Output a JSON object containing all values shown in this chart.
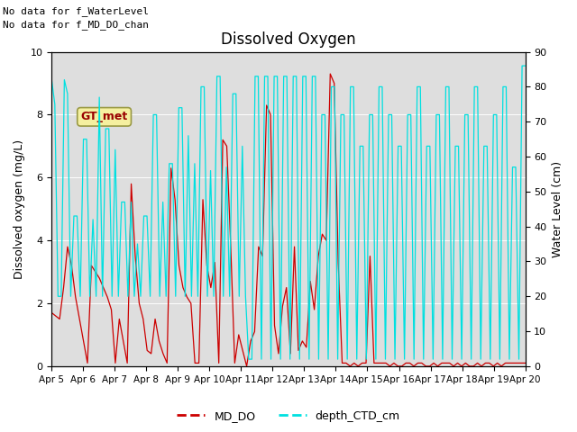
{
  "title": "Dissolved Oxygen",
  "ylabel_left": "Dissolved oxygen (mg/L)",
  "ylabel_right": "Water Level (cm)",
  "ylim_left": [
    0.0,
    10.0
  ],
  "ylim_right": [
    0,
    90
  ],
  "annotation1": "No data for f_WaterLevel",
  "annotation2": "No data for f_MD_DO_chan",
  "gt_met_label": "GT_met",
  "legend_labels": [
    "MD_DO",
    "depth_CTD_cm"
  ],
  "line_color_do": "#cc0000",
  "line_color_ctd": "#00e0e0",
  "xtick_labels": [
    "Apr 5",
    "Apr 6",
    "Apr 7",
    "Apr 8",
    "Apr 9",
    "Apr 10",
    "Apr 11",
    "Apr 12",
    "Apr 13",
    "Apr 14",
    "Apr 15",
    "Apr 16",
    "Apr 17",
    "Apr 18",
    "Apr 19",
    "Apr 20"
  ],
  "md_do": [
    1.7,
    1.6,
    1.5,
    2.5,
    3.8,
    3.2,
    2.2,
    1.5,
    0.8,
    0.1,
    3.2,
    3.0,
    2.8,
    2.5,
    2.2,
    1.8,
    0.1,
    1.5,
    0.8,
    0.1,
    5.8,
    3.5,
    2.0,
    1.5,
    0.5,
    0.4,
    1.5,
    0.8,
    0.4,
    0.1,
    6.3,
    5.3,
    3.2,
    2.5,
    2.2,
    2.0,
    0.1,
    0.1,
    5.3,
    3.2,
    2.5,
    3.3,
    0.1,
    7.2,
    7.0,
    3.8,
    0.1,
    1.0,
    0.5,
    0.0,
    0.8,
    1.1,
    3.8,
    3.5,
    8.3,
    8.0,
    1.3,
    0.4,
    1.9,
    2.5,
    0.4,
    3.8,
    0.5,
    0.8,
    0.6,
    2.7,
    1.8,
    3.5,
    4.2,
    4.0,
    9.3,
    9.0,
    3.3,
    0.1,
    0.1,
    0.0,
    0.1,
    0.0,
    0.1,
    0.1,
    3.5,
    0.1,
    0.1,
    0.1,
    0.1,
    0.0,
    0.1,
    0.0,
    0.0,
    0.1,
    0.1,
    0.0,
    0.1,
    0.1,
    0.0,
    0.0,
    0.1,
    0.0,
    0.1,
    0.1,
    0.1,
    0.0,
    0.1,
    0.0,
    0.1,
    0.0,
    0.0,
    0.1,
    0.0,
    0.1,
    0.1,
    0.0,
    0.1,
    0.0,
    0.1,
    0.1,
    0.1,
    0.1,
    0.1,
    0.1
  ],
  "depth_ctd": [
    82,
    75,
    20,
    20,
    82,
    78,
    20,
    43,
    43,
    20,
    65,
    65,
    20,
    42,
    20,
    77,
    20,
    68,
    68,
    20,
    62,
    20,
    47,
    47,
    20,
    47,
    20,
    35,
    20,
    43,
    43,
    20,
    72,
    72,
    20,
    47,
    20,
    58,
    58,
    20,
    74,
    74,
    20,
    66,
    20,
    58,
    20,
    80,
    80,
    20,
    56,
    20,
    83,
    83,
    20,
    57,
    20,
    78,
    78,
    20,
    63,
    20,
    2,
    2,
    83,
    83,
    2,
    83,
    83,
    2,
    83,
    83,
    2,
    83,
    83,
    2,
    83,
    83,
    2,
    83,
    83,
    2,
    83,
    83,
    2,
    72,
    72,
    2,
    80,
    80,
    2,
    72,
    72,
    2,
    80,
    80,
    2,
    63,
    63,
    2,
    72,
    72,
    2,
    80,
    80,
    2,
    72,
    72,
    2,
    63,
    63,
    2,
    72,
    72,
    2,
    80,
    80,
    2,
    63,
    63,
    2,
    72,
    72,
    2,
    80,
    80,
    2,
    63,
    63,
    2,
    72,
    72,
    2,
    80,
    80,
    2,
    63,
    63,
    2,
    72,
    72,
    2,
    80,
    80,
    2,
    57,
    57,
    2,
    86,
    86
  ]
}
